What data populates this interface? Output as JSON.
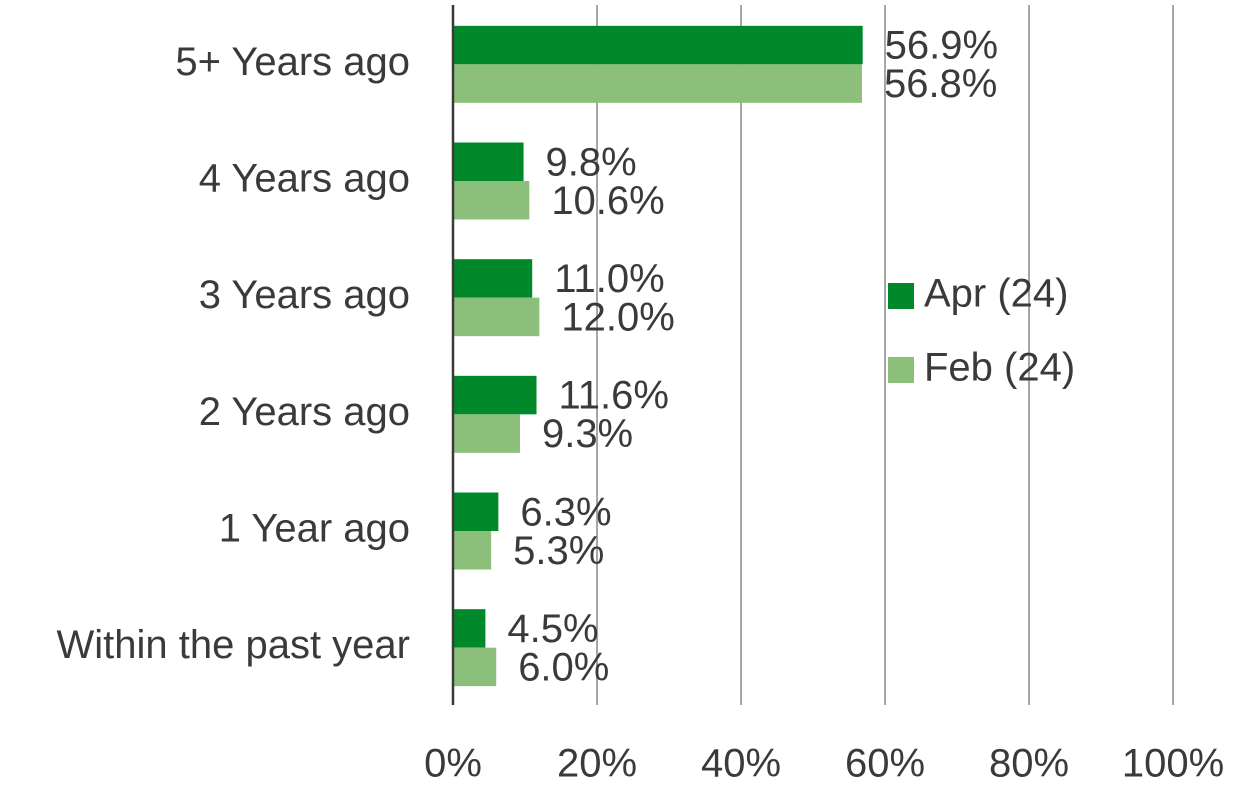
{
  "chart_data": {
    "type": "hbar",
    "categories": [
      "5+ Years ago",
      "4 Years ago",
      "3 Years ago",
      "2 Years ago",
      "1 Year ago",
      "Within the past year"
    ],
    "series": [
      {
        "name": "Apr (24)",
        "color": "#00882b",
        "values": [
          56.9,
          9.8,
          11.0,
          11.6,
          6.3,
          4.5
        ],
        "value_labels": [
          "56.9%",
          "9.8%",
          "11.0%",
          "11.6%",
          "6.3%",
          "4.5%"
        ]
      },
      {
        "name": "Feb (24)",
        "color": "#8cc07a",
        "values": [
          56.8,
          10.6,
          12.0,
          9.3,
          5.3,
          6.0
        ],
        "value_labels": [
          "56.8%",
          "10.6%",
          "12.0%",
          "9.3%",
          "5.3%",
          "6.0%"
        ]
      }
    ],
    "xlim": [
      0,
      100
    ],
    "xticks": [
      {
        "value": 0,
        "label": "0%"
      },
      {
        "value": 20,
        "label": "20%"
      },
      {
        "value": 40,
        "label": "40%"
      },
      {
        "value": 60,
        "label": "60%"
      },
      {
        "value": 80,
        "label": "80%"
      },
      {
        "value": 100,
        "label": "100%"
      }
    ],
    "grid": true,
    "legend": "right"
  }
}
